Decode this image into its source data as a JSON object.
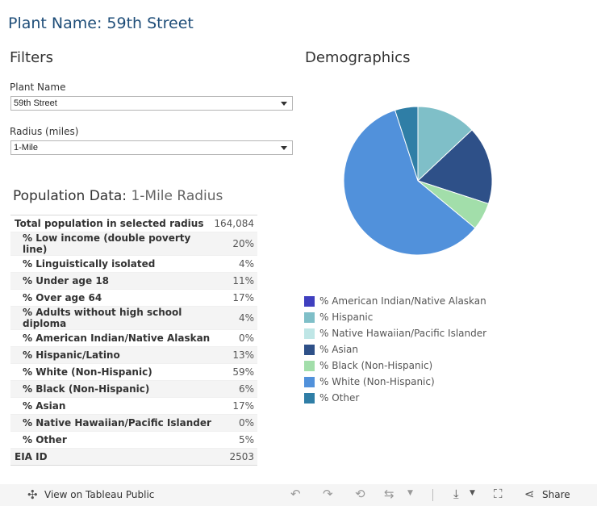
{
  "page": {
    "title": "Plant Name: 59th Street"
  },
  "filters": {
    "heading": "Filters",
    "plant_name": {
      "label": "Plant Name",
      "value": "59th Street"
    },
    "radius": {
      "label": "Radius (miles)",
      "value": "1-Mile"
    }
  },
  "population": {
    "heading": "Population Data:",
    "subheading": "1-Mile Radius",
    "rows": [
      {
        "label": "Total population in selected radius",
        "value": "164,084"
      },
      {
        "label": "% Low income (double poverty line)",
        "value": "20%"
      },
      {
        "label": "% Linguistically isolated",
        "value": "4%"
      },
      {
        "label": "% Under age 18",
        "value": "11%"
      },
      {
        "label": "% Over age 64",
        "value": "17%"
      },
      {
        "label": "% Adults without high school diploma",
        "value": "4%"
      },
      {
        "label": "% American Indian/Native Alaskan",
        "value": "0%"
      },
      {
        "label": "% Hispanic/Latino",
        "value": "13%"
      },
      {
        "label": "% White (Non-Hispanic)",
        "value": "59%"
      },
      {
        "label": "% Black (Non-Hispanic)",
        "value": "6%"
      },
      {
        "label": "% Asian",
        "value": "17%"
      },
      {
        "label": "% Native Hawaiian/Pacific Islander",
        "value": "0%"
      },
      {
        "label": "% Other",
        "value": "5%"
      },
      {
        "label": "EIA ID",
        "value": "2503"
      }
    ]
  },
  "demographics": {
    "heading": "Demographics"
  },
  "chart_data": {
    "type": "pie",
    "title": "Demographics",
    "legend_position": "bottom",
    "start_angle_deg": 0,
    "categories": [
      "% American Indian/Native Alaskan",
      "% Hispanic",
      "% Native Hawaiian/Pacific Islander",
      "% Asian",
      "% Black (Non-Hispanic)",
      "% White (Non-Hispanic)",
      "% Other"
    ],
    "values": [
      0,
      13,
      0,
      17,
      6,
      59,
      5
    ],
    "colors": [
      "#3f3fbf",
      "#7fbfc8",
      "#bfe6e6",
      "#2e5088",
      "#a2deaa",
      "#5191db",
      "#2f7ea6"
    ]
  },
  "footer": {
    "view_label": "View on Tableau Public",
    "share_label": "Share"
  }
}
